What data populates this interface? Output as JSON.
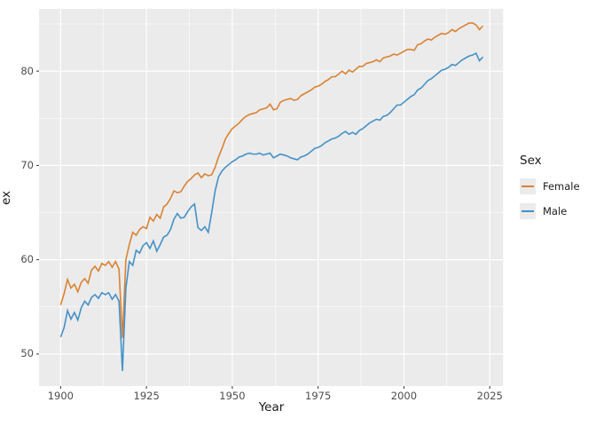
{
  "axes": {
    "x_title": "Year",
    "y_title": "ex",
    "x_tick_labels": [
      "1900",
      "1925",
      "1950",
      "1975",
      "2000",
      "2025"
    ],
    "y_tick_labels": [
      "50",
      "60",
      "70",
      "80"
    ]
  },
  "legend": {
    "title": "Sex",
    "items": [
      {
        "label": "Female",
        "color": "#DA8233"
      },
      {
        "label": "Male",
        "color": "#4491C7"
      }
    ]
  },
  "style": {
    "panel_bg": "#EBEBEB",
    "grid_color": "#FFFFFF",
    "tick_color": "#333333",
    "female_color": "#DA8233",
    "male_color": "#4491C7"
  },
  "chart_data": {
    "type": "line",
    "title": "",
    "xlabel": "Year",
    "ylabel": "ex",
    "legend_title": "Sex",
    "legend_position": "right",
    "grid": true,
    "xlim": [
      1893.7,
      2028.9
    ],
    "ylim": [
      46.6,
      86.6
    ],
    "x_ticks": [
      1900,
      1925,
      1950,
      1975,
      2000,
      2025
    ],
    "y_ticks": [
      50,
      60,
      70,
      80
    ],
    "x": [
      1900,
      1901,
      1902,
      1903,
      1904,
      1905,
      1906,
      1907,
      1908,
      1909,
      1910,
      1911,
      1912,
      1913,
      1914,
      1915,
      1916,
      1917,
      1918,
      1919,
      1920,
      1921,
      1922,
      1923,
      1924,
      1925,
      1926,
      1927,
      1928,
      1929,
      1930,
      1931,
      1932,
      1933,
      1934,
      1935,
      1936,
      1937,
      1938,
      1939,
      1940,
      1941,
      1942,
      1943,
      1944,
      1945,
      1946,
      1947,
      1948,
      1949,
      1950,
      1951,
      1952,
      1953,
      1954,
      1955,
      1956,
      1957,
      1958,
      1959,
      1960,
      1961,
      1962,
      1963,
      1964,
      1965,
      1966,
      1967,
      1968,
      1969,
      1970,
      1971,
      1972,
      1973,
      1974,
      1975,
      1976,
      1977,
      1978,
      1979,
      1980,
      1981,
      1982,
      1983,
      1984,
      1985,
      1986,
      1987,
      1988,
      1989,
      1990,
      1991,
      1992,
      1993,
      1994,
      1995,
      1996,
      1997,
      1998,
      1999,
      2000,
      2001,
      2002,
      2003,
      2004,
      2005,
      2006,
      2007,
      2008,
      2009,
      2010,
      2011,
      2012,
      2013,
      2014,
      2015,
      2016,
      2017,
      2018,
      2019,
      2020,
      2021,
      2022,
      2023
    ],
    "series": [
      {
        "name": "Female",
        "color": "#DA8233",
        "values": [
          55.2,
          56.4,
          57.9,
          57.0,
          57.4,
          56.6,
          57.6,
          58.0,
          57.5,
          58.9,
          59.3,
          58.8,
          59.6,
          59.4,
          59.8,
          59.2,
          59.8,
          59.0,
          51.7,
          60.0,
          61.6,
          62.9,
          62.6,
          63.2,
          63.5,
          63.3,
          64.5,
          64.1,
          64.8,
          64.4,
          65.6,
          65.9,
          66.5,
          67.3,
          67.1,
          67.2,
          67.8,
          68.3,
          68.6,
          69.0,
          69.2,
          68.7,
          69.1,
          68.9,
          69.0,
          69.8,
          70.9,
          71.8,
          72.8,
          73.4,
          73.9,
          74.2,
          74.5,
          74.9,
          75.2,
          75.4,
          75.5,
          75.6,
          75.9,
          76.0,
          76.1,
          76.5,
          75.9,
          76.0,
          76.7,
          76.9,
          77.0,
          77.1,
          76.9,
          77.0,
          77.4,
          77.6,
          77.8,
          78.0,
          78.3,
          78.4,
          78.6,
          78.9,
          79.1,
          79.4,
          79.4,
          79.7,
          80.0,
          79.7,
          80.1,
          79.9,
          80.2,
          80.5,
          80.5,
          80.8,
          80.9,
          81.0,
          81.2,
          81.0,
          81.4,
          81.5,
          81.6,
          81.8,
          81.7,
          81.9,
          82.1,
          82.3,
          82.3,
          82.2,
          82.8,
          82.9,
          83.2,
          83.4,
          83.3,
          83.6,
          83.8,
          84.0,
          83.9,
          84.1,
          84.4,
          84.2,
          84.5,
          84.7,
          84.9,
          85.1,
          85.1,
          84.9,
          84.4,
          84.8
        ]
      },
      {
        "name": "Male",
        "color": "#4491C7",
        "values": [
          51.8,
          52.8,
          54.6,
          53.7,
          54.4,
          53.6,
          54.9,
          55.6,
          55.2,
          56.0,
          56.3,
          55.9,
          56.5,
          56.3,
          56.5,
          55.8,
          56.3,
          55.6,
          48.2,
          57.0,
          59.8,
          59.4,
          61.0,
          60.7,
          61.5,
          61.8,
          61.2,
          62.0,
          60.9,
          61.6,
          62.4,
          62.6,
          63.2,
          64.3,
          64.9,
          64.4,
          64.5,
          65.1,
          65.6,
          65.9,
          63.4,
          63.1,
          63.5,
          62.9,
          65.0,
          67.3,
          68.8,
          69.4,
          69.8,
          70.1,
          70.4,
          70.6,
          70.9,
          71.0,
          71.2,
          71.3,
          71.2,
          71.2,
          71.3,
          71.1,
          71.2,
          71.3,
          70.8,
          71.0,
          71.2,
          71.1,
          71.0,
          70.8,
          70.7,
          70.6,
          70.9,
          71.0,
          71.2,
          71.5,
          71.8,
          71.9,
          72.1,
          72.4,
          72.6,
          72.8,
          72.9,
          73.1,
          73.4,
          73.6,
          73.3,
          73.5,
          73.3,
          73.7,
          73.9,
          74.2,
          74.5,
          74.7,
          74.9,
          74.8,
          75.2,
          75.3,
          75.6,
          76.0,
          76.4,
          76.4,
          76.7,
          77.0,
          77.3,
          77.5,
          78.0,
          78.2,
          78.6,
          79.0,
          79.2,
          79.5,
          79.8,
          80.1,
          80.2,
          80.4,
          80.7,
          80.6,
          80.9,
          81.2,
          81.4,
          81.6,
          81.7,
          81.9,
          81.1,
          81.5
        ]
      }
    ]
  }
}
